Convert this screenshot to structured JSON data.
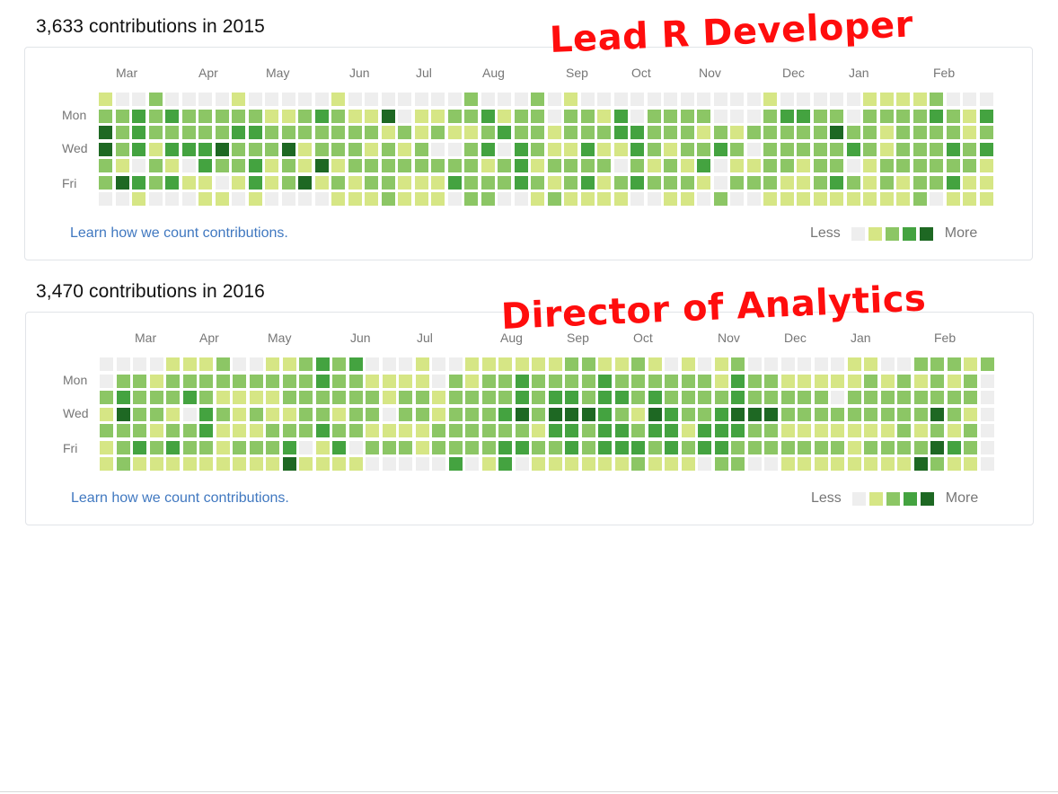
{
  "palette": [
    "#eeeeee",
    "#d6e685",
    "#8cc665",
    "#44a340",
    "#1e6823"
  ],
  "panels": [
    {
      "title": "3,633 contributions in 2015",
      "overlay": "Lead R Developer",
      "months": [
        "Mar",
        "Apr",
        "May",
        "Jun",
        "Jul",
        "Aug",
        "Sep",
        "Oct",
        "Nov",
        "Dec",
        "Jan",
        "Feb"
      ],
      "days": [
        "Mon",
        "Wed",
        "Fri"
      ],
      "link": "Learn how we count contributions.",
      "legend_less": "Less",
      "legend_more": "More",
      "weeks": [
        "1244220",
        "0222140",
        "0333031",
        "2221220",
        "0323130",
        "0223010",
        "0223311",
        "0224201",
        "1232210",
        "0232331",
        "0122110",
        "0124220",
        "0221140",
        "0322410",
        "1222121",
        "0122211",
        "0121221",
        "0412222",
        "0021211",
        "0112211",
        "0120211",
        "0210230",
        "2212222",
        "0323122",
        "0130220",
        "0223330",
        "2222121",
        "0011212",
        "1221221",
        "0223231",
        "0121211",
        "0331021",
        "0033230",
        "0222120",
        "0221221",
        "0222121",
        "0212310",
        "0023002",
        "0012120",
        "0020120",
        "1222221",
        "0322211",
        "0322111",
        "0222221",
        "0242231",
        "0023021",
        "1222111",
        "1211221",
        "1222211",
        "1222222",
        "2322220",
        "0223231",
        "0112211",
        "0323111"
      ]
    },
    {
      "title": "3,470 contributions in 2016",
      "overlay": "Director of Analytics",
      "months": [
        "Mar",
        "Apr",
        "May",
        "Jun",
        "Jul",
        "Aug",
        "Sep",
        "Oct",
        "Nov",
        "Dec",
        "Jan",
        "Feb"
      ],
      "days": [
        "Mon",
        "Wed",
        "Fri"
      ],
      "link": "Learn how we count contributions.",
      "legend_less": "Less",
      "legend_more": "More",
      "weeks": [
        "0021211",
        "0234222",
        "0222231",
        "0122121",
        "1221231",
        "1230221",
        "1223321",
        "2212111",
        "0211121",
        "0212121",
        "1211221",
        "1221234",
        "2222201",
        "3322311",
        "2221231",
        "3222201",
        "0122120",
        "0110120",
        "0122120",
        "1122110",
        "0011220",
        "0222223",
        "1122220",
        "1222221",
        "1223233",
        "1334230",
        "1222121",
        "1234321",
        "2234331",
        "2224221",
        "1333331",
        "1232331",
        "2221232",
        "1234321",
        "0223331",
        "1222121",
        "0222330",
        "1123332",
        "2334322",
        "0224220",
        "0224220",
        "0122121",
        "0122121",
        "0122121",
        "0102121",
        "1122111",
        "1222121",
        "0122121",
        "0222221",
        "2122124",
        "2224242",
        "2122131",
        "1221221",
        "2000000"
      ]
    }
  ]
}
